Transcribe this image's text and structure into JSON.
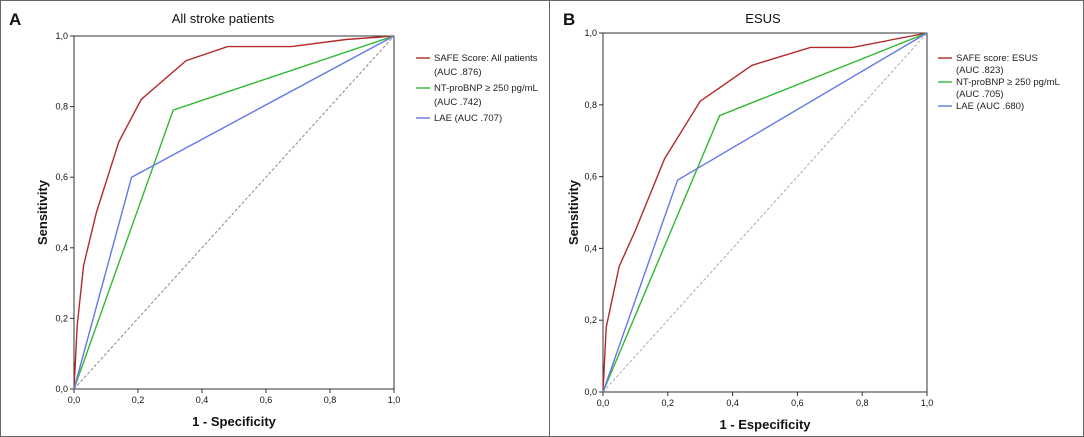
{
  "chart_data": [
    {
      "type": "line",
      "panel_letter": "A",
      "title": "All stroke patients",
      "xlabel": "1 - Specificity",
      "ylabel": "Sensitivity",
      "xlim": [
        0,
        1
      ],
      "ylim": [
        0,
        1
      ],
      "x_ticks": [
        "0,0",
        "0,2",
        "0,4",
        "0,6",
        "0,8",
        "1,0"
      ],
      "y_ticks": [
        "0,0",
        "0,2",
        "0,4",
        "0,6",
        "0,8",
        "1,0"
      ],
      "legend_position": "top-right",
      "series": [
        {
          "name": "SAFE Score: All patients",
          "legend_lines": [
            "SAFE Score: All patients",
            "(AUC .876)"
          ],
          "color": "#b22a2a",
          "dashed": false,
          "points": [
            [
              0,
              0
            ],
            [
              0.01,
              0.18
            ],
            [
              0.03,
              0.35
            ],
            [
              0.07,
              0.5
            ],
            [
              0.14,
              0.7
            ],
            [
              0.21,
              0.82
            ],
            [
              0.35,
              0.93
            ],
            [
              0.48,
              0.97
            ],
            [
              0.68,
              0.97
            ],
            [
              0.85,
              0.99
            ],
            [
              1,
              1
            ]
          ]
        },
        {
          "name": "NT-proBNP ≥ 250 pg/mL",
          "legend_lines": [
            "NT-proBNP ≥ 250 pg/mL",
            "(AUC .742)"
          ],
          "color": "#33b833",
          "dashed": false,
          "points": [
            [
              0,
              0
            ],
            [
              0.31,
              0.79
            ],
            [
              1,
              1
            ]
          ]
        },
        {
          "name": "LAE",
          "legend_lines": [
            "LAE (AUC .707)"
          ],
          "color": "#6478e6",
          "dashed": false,
          "points": [
            [
              0,
              0
            ],
            [
              0.18,
              0.6
            ],
            [
              1,
              1
            ]
          ]
        },
        {
          "name": "Reference line",
          "legend_lines": [],
          "color": "#888888",
          "dashed": true,
          "points": [
            [
              0,
              0
            ],
            [
              1,
              1
            ]
          ]
        }
      ]
    },
    {
      "type": "line",
      "panel_letter": "B",
      "title": "ESUS",
      "xlabel": "1 - Especificity",
      "ylabel": "Sensitivity",
      "xlim": [
        0,
        1
      ],
      "ylim": [
        0,
        1
      ],
      "x_ticks": [
        "0,0",
        "0,2",
        "0,4",
        "0,6",
        "0,8",
        "1,0"
      ],
      "y_ticks": [
        "0,0",
        "0,2",
        "0,4",
        "0,6",
        "0,8",
        "1,0"
      ],
      "legend_position": "top-right",
      "series": [
        {
          "name": "SAFE score: ESUS",
          "legend_lines": [
            "SAFE score: ESUS",
            "(AUC .823)"
          ],
          "color": "#b22a2a",
          "dashed": false,
          "points": [
            [
              0,
              0
            ],
            [
              0.01,
              0.18
            ],
            [
              0.05,
              0.35
            ],
            [
              0.1,
              0.45
            ],
            [
              0.19,
              0.65
            ],
            [
              0.3,
              0.81
            ],
            [
              0.46,
              0.91
            ],
            [
              0.64,
              0.96
            ],
            [
              0.77,
              0.96
            ],
            [
              1,
              1
            ]
          ]
        },
        {
          "name": "NT-proBNP ≥ 250 pg/mL",
          "legend_lines": [
            "NT-proBNP ≥ 250 pg/mL",
            "(AUC .705)"
          ],
          "color": "#33b833",
          "dashed": false,
          "points": [
            [
              0,
              0
            ],
            [
              0.36,
              0.77
            ],
            [
              1,
              1
            ]
          ]
        },
        {
          "name": "LAE",
          "legend_lines": [
            "LAE (AUC .680)"
          ],
          "color": "#6478e6",
          "dashed": false,
          "points": [
            [
              0,
              0
            ],
            [
              0.23,
              0.59
            ],
            [
              1,
              1
            ]
          ]
        },
        {
          "name": "Reference line",
          "legend_lines": [],
          "color": "#aaaaaa",
          "dashed": true,
          "points": [
            [
              0,
              0
            ],
            [
              1,
              1
            ]
          ]
        }
      ]
    }
  ]
}
